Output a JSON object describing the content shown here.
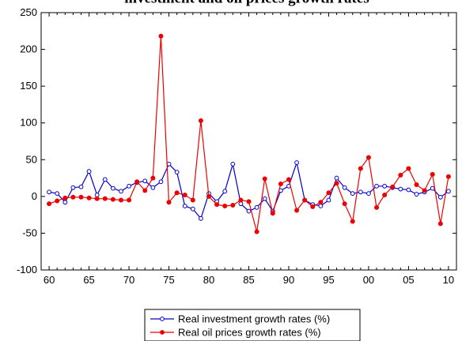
{
  "chart_data": {
    "type": "line",
    "title": "investment and oil prices growth rates",
    "xlabel": "",
    "ylabel": "",
    "x": [
      1960,
      1961,
      1962,
      1963,
      1964,
      1965,
      1966,
      1967,
      1968,
      1969,
      1970,
      1971,
      1972,
      1973,
      1974,
      1975,
      1976,
      1977,
      1978,
      1979,
      1980,
      1981,
      1982,
      1983,
      1984,
      1985,
      1986,
      1987,
      1988,
      1989,
      1990,
      1991,
      1992,
      1993,
      1994,
      1995,
      1996,
      1997,
      1998,
      1999,
      2000,
      2001,
      2002,
      2003,
      2004,
      2005,
      2006,
      2007,
      2008,
      2009,
      2010
    ],
    "xlim": [
      1959,
      2011
    ],
    "ylim": [
      -100,
      250
    ],
    "y_ticks": [
      -100,
      -50,
      0,
      50,
      100,
      150,
      200,
      250
    ],
    "x_ticks": [
      {
        "value": 1960,
        "label": "60"
      },
      {
        "value": 1965,
        "label": "65"
      },
      {
        "value": 1970,
        "label": "70"
      },
      {
        "value": 1975,
        "label": "75"
      },
      {
        "value": 1980,
        "label": "80"
      },
      {
        "value": 1985,
        "label": "85"
      },
      {
        "value": 1990,
        "label": "90"
      },
      {
        "value": 1995,
        "label": "95"
      },
      {
        "value": 2000,
        "label": "00"
      },
      {
        "value": 2005,
        "label": "05"
      },
      {
        "value": 2010,
        "label": "10"
      }
    ],
    "grid": false,
    "legend_position": "bottom",
    "series": [
      {
        "name": "Real investment growth rates (%)",
        "color": "#0000cc",
        "marker": "open-circle",
        "values": [
          6,
          4,
          -8,
          12,
          13,
          34,
          2,
          23,
          11,
          7,
          14,
          19,
          21,
          12,
          20,
          44,
          33,
          -13,
          -17,
          -30,
          4,
          -7,
          7,
          44,
          -10,
          -20,
          -15,
          -3,
          -20,
          8,
          14,
          46,
          -5,
          -11,
          -13,
          -5,
          25,
          12,
          4,
          6,
          4,
          14,
          14,
          12,
          10,
          9,
          3,
          6,
          11,
          -1,
          7
        ]
      },
      {
        "name": "Real oil prices growth rates (%)",
        "color": "#ee0000",
        "marker": "filled-circle",
        "values": [
          -10,
          -6,
          -2,
          -1,
          -1,
          -2,
          -3,
          -3,
          -4,
          -5,
          -5,
          20,
          8,
          25,
          218,
          -8,
          5,
          2,
          -5,
          103,
          0,
          -11,
          -13,
          -12,
          -5,
          -7,
          -48,
          24,
          -23,
          17,
          23,
          -19,
          -5,
          -14,
          -8,
          5,
          18,
          -10,
          -34,
          38,
          53,
          -15,
          2,
          13,
          29,
          38,
          16,
          8,
          30,
          -37,
          27
        ]
      }
    ]
  }
}
